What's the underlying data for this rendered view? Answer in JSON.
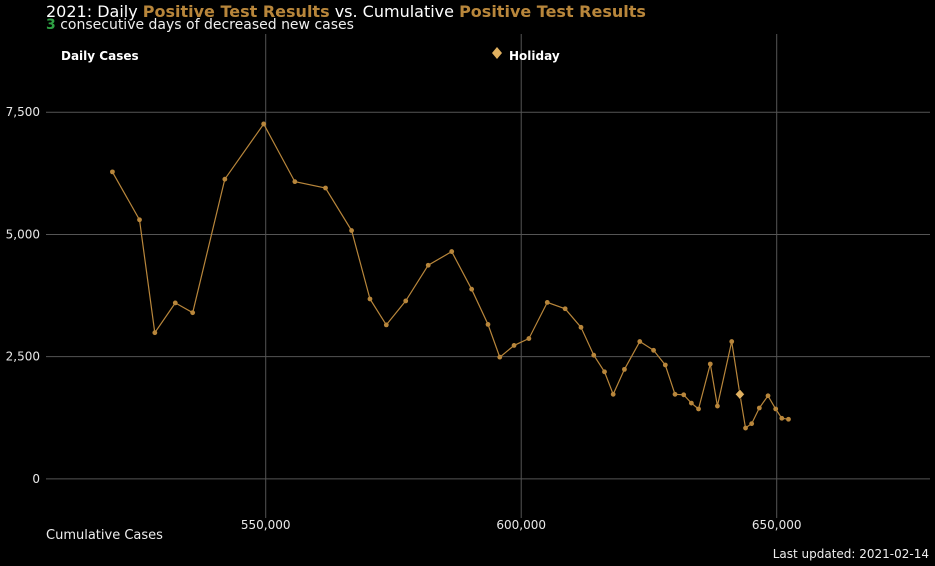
{
  "title": {
    "prefix": "2021: Daily ",
    "highlight1": "Positive Test Results",
    "middle": " vs. Cumulative ",
    "highlight2": "Positive Test Results"
  },
  "subtitle": {
    "count": "3",
    "text": " consecutive days of decreased new cases"
  },
  "footer": "Last updated: 2021-02-14",
  "colors": {
    "accent": "#b8863b",
    "holiday": "#e0b060",
    "grid": "#555555",
    "count": "#2ea043"
  },
  "chart_data": {
    "type": "line",
    "xlabel": "Cumulative Cases",
    "xlim": [
      507000,
      680000
    ],
    "ylim": [
      -800,
      9100
    ],
    "x_ticks": [
      550000,
      600000,
      650000
    ],
    "x_tick_labels": [
      "550,000",
      "600,000",
      "650,000"
    ],
    "y_ticks": [
      0,
      2500,
      5000,
      7500
    ],
    "y_tick_labels": [
      "0",
      "2,500",
      "5,000",
      "7,500"
    ],
    "grid": true,
    "legend": [
      {
        "label": "Daily Cases",
        "marker": "none"
      },
      {
        "label": "Holiday",
        "marker": "diamond"
      }
    ],
    "series": [
      {
        "name": "Daily Cases",
        "x": [
          520000,
          525300,
          528300,
          532300,
          535700,
          542000,
          549600,
          555700,
          561700,
          566800,
          570400,
          573600,
          577400,
          581800,
          586400,
          590300,
          593500,
          595800,
          598600,
          601500,
          605100,
          608600,
          611700,
          614200,
          616300,
          618000,
          620200,
          623200,
          625900,
          628200,
          630100,
          631800,
          633300,
          634700,
          637000,
          638400,
          641200,
          642800,
          643900,
          645100,
          646600,
          648300,
          649800,
          651000,
          652300
        ],
        "y": [
          6280,
          5300,
          2990,
          3600,
          3400,
          6130,
          7260,
          6080,
          5950,
          5080,
          3680,
          3150,
          3640,
          4370,
          4650,
          3880,
          3160,
          2490,
          2730,
          2870,
          3610,
          3480,
          3100,
          2530,
          2190,
          1730,
          2240,
          2810,
          2630,
          2330,
          1730,
          1720,
          1550,
          1430,
          2350,
          1490,
          2810,
          1730,
          1040,
          1130,
          1450,
          1700,
          1430,
          1240,
          1220
        ]
      }
    ],
    "holidays": [
      {
        "x": 642800,
        "y": 1730
      }
    ]
  }
}
